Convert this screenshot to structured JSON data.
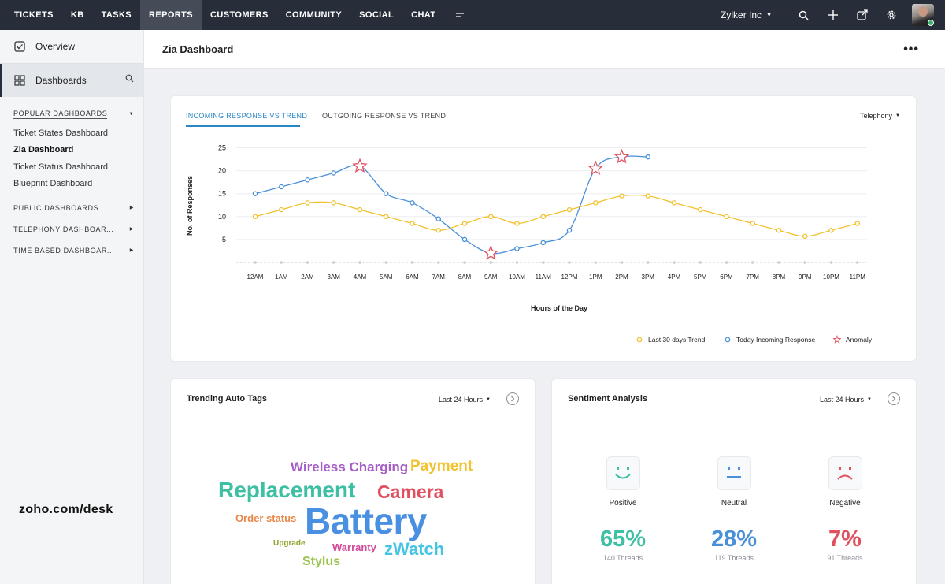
{
  "topnav": {
    "items": [
      {
        "label": "TICKETS"
      },
      {
        "label": "KB"
      },
      {
        "label": "TASKS"
      },
      {
        "label": "REPORTS",
        "active": true
      },
      {
        "label": "CUSTOMERS"
      },
      {
        "label": "COMMUNITY"
      },
      {
        "label": "SOCIAL"
      },
      {
        "label": "CHAT"
      }
    ],
    "more_icon": "menu-icon",
    "org_name": "Zylker Inc",
    "icons": [
      "search-icon",
      "plus-icon",
      "share-icon",
      "gear-icon"
    ]
  },
  "sidebar": {
    "overview_label": "Overview",
    "dashboards_label": "Dashboards",
    "popular_label": "POPULAR DASHBOARDS",
    "popular_items": [
      {
        "label": "Ticket States Dashboard"
      },
      {
        "label": "Zia Dashboard",
        "active": true
      },
      {
        "label": "Ticket Status Dashboard"
      },
      {
        "label": "Blueprint Dashboard"
      }
    ],
    "groups": [
      {
        "label": "PUBLIC DASHBOARDS"
      },
      {
        "label": "TELEPHONY DASHBOAR..."
      },
      {
        "label": "TIME BASED DASHBOAR..."
      }
    ],
    "watermark": "zoho.com/desk"
  },
  "header": {
    "title": "Zia Dashboard"
  },
  "trend_card": {
    "tabs": [
      {
        "label": "INCOMING RESPONSE VS TREND",
        "active": true
      },
      {
        "label": "OUTGOING RESPONSE VS TREND"
      }
    ],
    "dropdown": "Telephony"
  },
  "chart_data": {
    "type": "line",
    "x": [
      "12AM",
      "1AM",
      "2AM",
      "3AM",
      "4AM",
      "5AM",
      "6AM",
      "7AM",
      "8AM",
      "9AM",
      "10AM",
      "11AM",
      "12PM",
      "1PM",
      "2PM",
      "3PM",
      "4PM",
      "5PM",
      "6PM",
      "7PM",
      "8PM",
      "9PM",
      "10PM",
      "11PM"
    ],
    "ylabel": "No. of Responses",
    "xlabel": "Hours of the Day",
    "yticks": [
      5,
      10,
      15,
      20,
      25
    ],
    "ylim": [
      0,
      25
    ],
    "grid": true,
    "legend_position": "bottom-right",
    "series": [
      {
        "name": "Last 30 days Trend",
        "color": "#f2c12e",
        "marker": "circle",
        "values": [
          10,
          11.5,
          13,
          13,
          11.5,
          10,
          8.5,
          7,
          8.5,
          10,
          8.5,
          10,
          11.5,
          13,
          14.5,
          14.5,
          13,
          11.5,
          10,
          8.5,
          7,
          5.7,
          7,
          8.5
        ]
      },
      {
        "name": "Today Incoming Response",
        "color": "#4a90d9",
        "marker": "circle",
        "values": [
          15,
          16.5,
          18,
          19.5,
          21,
          15,
          13,
          9.5,
          5,
          2,
          3,
          4.3,
          7,
          20.5,
          23,
          23,
          null,
          null,
          null,
          null,
          null,
          null,
          null,
          null
        ]
      },
      {
        "name": "Anomaly",
        "color": "#e0505f",
        "marker": "star",
        "points": [
          {
            "x": "4AM",
            "y": 21
          },
          {
            "x": "9AM",
            "y": 2
          },
          {
            "x": "1PM",
            "y": 20.5
          },
          {
            "x": "2PM",
            "y": 23
          }
        ]
      }
    ]
  },
  "tags_card": {
    "title": "Trending Auto Tags",
    "dropdown": "Last 24 Hours",
    "tags": [
      {
        "text": "Wireless Charging",
        "color": "#a65fc7"
      },
      {
        "text": "Payment",
        "color": "#f2c12e"
      },
      {
        "text": "Replacement",
        "color": "#3cbfa3"
      },
      {
        "text": "Camera",
        "color": "#e0505f"
      },
      {
        "text": "Order status",
        "color": "#e7874a"
      },
      {
        "text": "Battery",
        "color": "#4a90e2"
      },
      {
        "text": "Upgrade",
        "color": "#8ea32a"
      },
      {
        "text": "Warranty",
        "color": "#d2499a"
      },
      {
        "text": "zWatch",
        "color": "#45c4e4"
      },
      {
        "text": "Stylus",
        "color": "#9ac54a"
      }
    ]
  },
  "sentiment_card": {
    "title": "Sentiment Analysis",
    "dropdown": "Last 24 Hours",
    "items": [
      {
        "label": "Positive",
        "percent": "65%",
        "threads": "140 Threads",
        "color": "#3cbfa3",
        "icon": "smile-face-icon"
      },
      {
        "label": "Neutral",
        "percent": "28%",
        "threads": "119 Threads",
        "color": "#4a90d9",
        "icon": "neutral-face-icon"
      },
      {
        "label": "Negative",
        "percent": "7%",
        "threads": "91 Threads",
        "color": "#e0505f",
        "icon": "sad-face-icon"
      }
    ]
  }
}
